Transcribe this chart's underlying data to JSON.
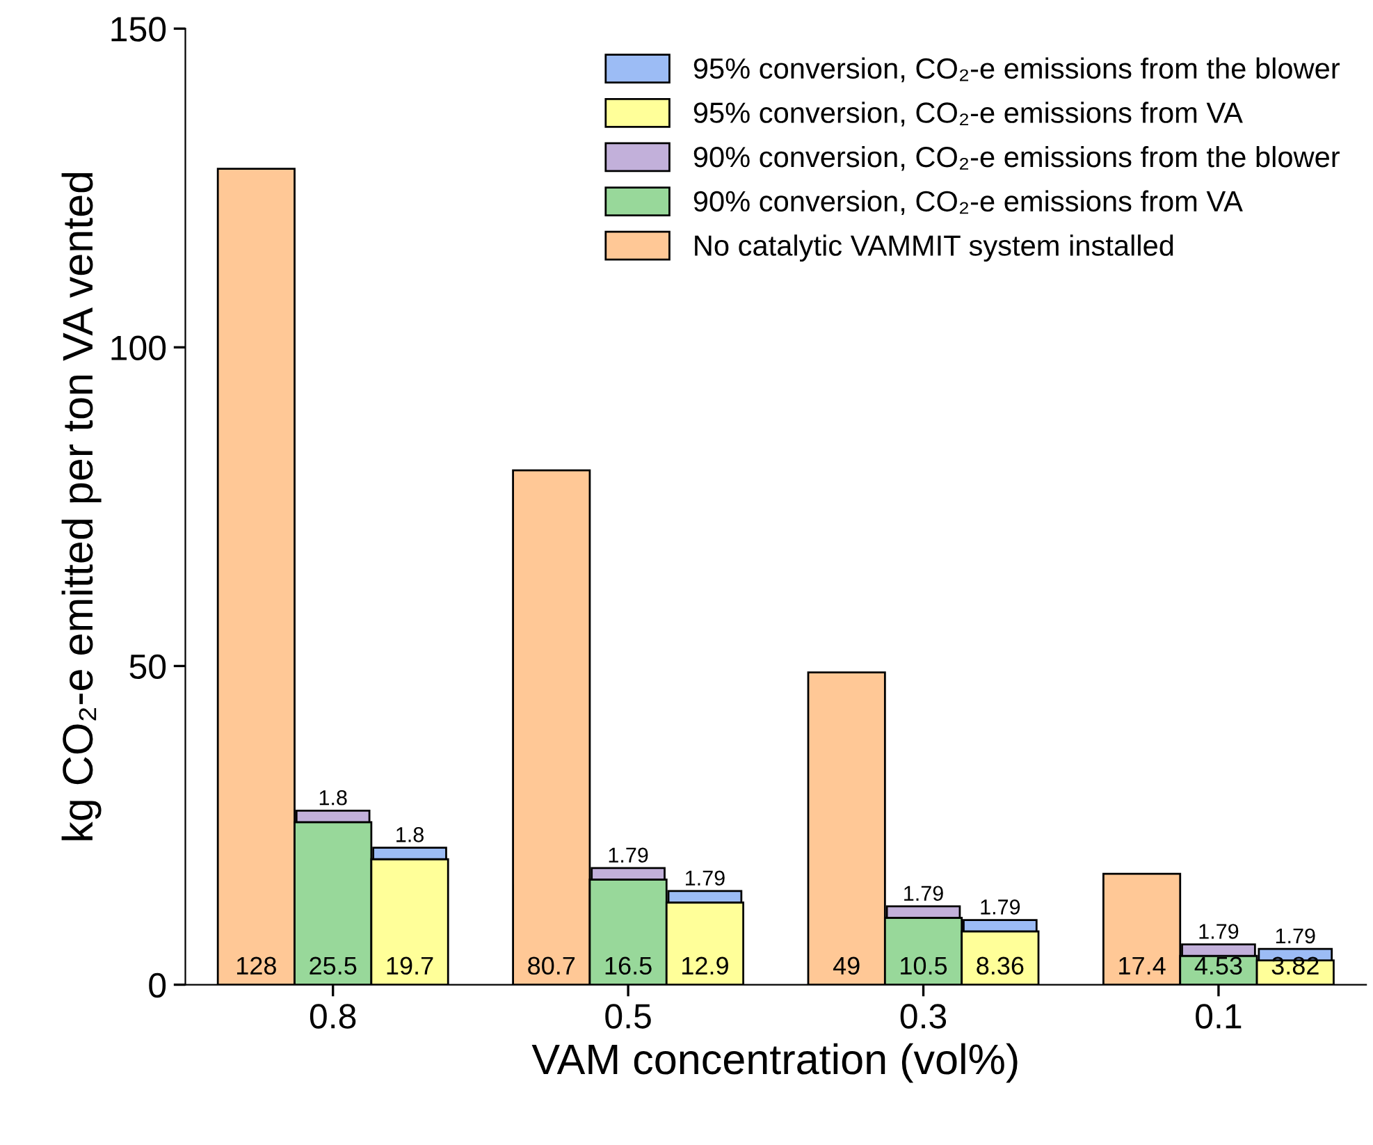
{
  "chart_data": {
    "type": "bar",
    "xlabel": "VAM concentration (vol%)",
    "ylabel": "kg CO₂-e emitted per ton VA vented",
    "categories": [
      "0.8",
      "0.5",
      "0.3",
      "0.1"
    ],
    "series": [
      {
        "name": "No catalytic VAMMIT system installed",
        "color": "#ffc896",
        "values": [
          128,
          80.7,
          49,
          17.4
        ]
      },
      {
        "name": "90% conversion, CO₂-e emissions from VA",
        "color": "#98d89a",
        "values": [
          25.5,
          16.5,
          10.5,
          4.53
        ]
      },
      {
        "name": "90% conversion, CO₂-e emissions from the blower",
        "color": "#c2b0da",
        "values": [
          1.8,
          1.79,
          1.79,
          1.79
        ],
        "base": [
          25.5,
          16.5,
          10.5,
          4.53
        ]
      },
      {
        "name": "95% conversion, CO₂-e emissions from VA",
        "color": "#ffff99",
        "values": [
          19.7,
          12.9,
          8.36,
          3.82
        ]
      },
      {
        "name": "95% conversion, CO₂-e emissions from the blower",
        "color": "#9cbcf5",
        "values": [
          1.8,
          1.79,
          1.79,
          1.79
        ],
        "base": [
          19.7,
          12.9,
          8.36,
          3.82
        ]
      }
    ],
    "ylim": [
      0,
      150
    ],
    "yticks": [
      0,
      50,
      100,
      150
    ],
    "data_labels": true,
    "legend": "top right",
    "grid": false
  }
}
